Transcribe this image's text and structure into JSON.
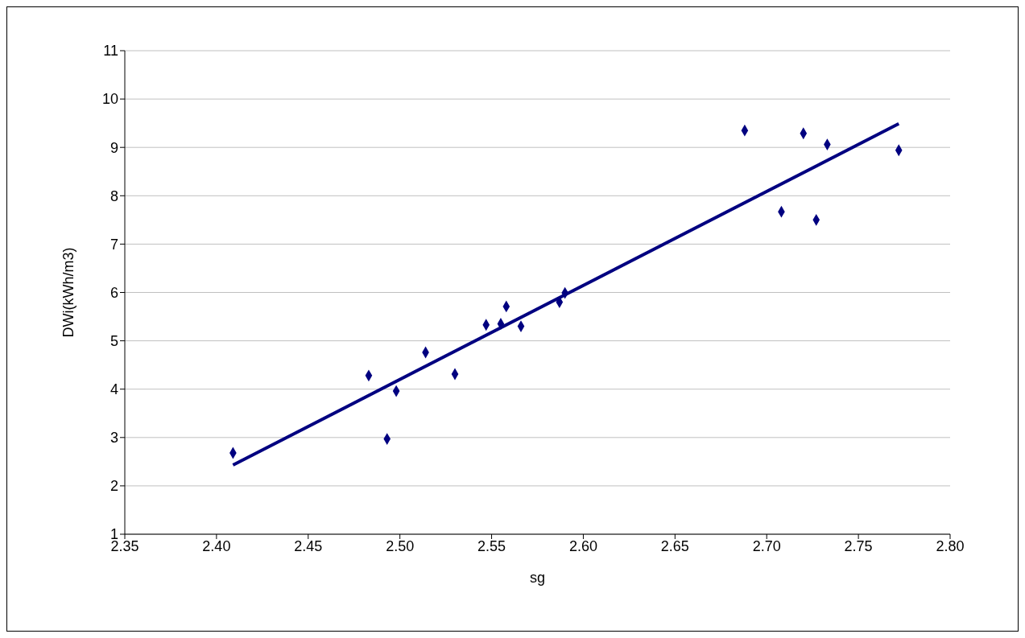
{
  "chart_data": {
    "type": "scatter",
    "xlabel": "sg",
    "ylabel": "DWi(kWh/m3)",
    "marker": "diamond",
    "grid": "y",
    "xlim": [
      2.35,
      2.8
    ],
    "xticks": [
      {
        "value": 2.35,
        "label": "2.35"
      },
      {
        "value": 2.4,
        "label": "2.40"
      },
      {
        "value": 2.45,
        "label": "2.45"
      },
      {
        "value": 2.5,
        "label": "2.50"
      },
      {
        "value": 2.55,
        "label": "2.55"
      },
      {
        "value": 2.6,
        "label": "2.60"
      },
      {
        "value": 2.65,
        "label": "2.65"
      },
      {
        "value": 2.7,
        "label": "2.70"
      },
      {
        "value": 2.75,
        "label": "2.75"
      },
      {
        "value": 2.8,
        "label": "2.80"
      }
    ],
    "ylim": [
      1,
      11
    ],
    "yticks": [
      1,
      2,
      3,
      4,
      5,
      6,
      7,
      8,
      9,
      10,
      11
    ],
    "series": [
      {
        "color": "#000080",
        "x": [
          2.409,
          2.483,
          2.493,
          2.498,
          2.514,
          2.53,
          2.547,
          2.555,
          2.558,
          2.566,
          2.587,
          2.59,
          2.688,
          2.708,
          2.72,
          2.727,
          2.733,
          2.772
        ],
        "values": [
          2.68,
          4.28,
          2.97,
          3.96,
          4.76,
          4.31,
          5.33,
          5.35,
          5.71,
          5.3,
          5.8,
          5.99,
          9.35,
          7.67,
          9.29,
          7.5,
          9.06,
          8.94
        ]
      },
      {
        "type": "line",
        "color": "#000080",
        "marker": "none",
        "x": [
          2.409,
          2.772
        ],
        "values": [
          2.43,
          9.49
        ]
      }
    ]
  }
}
